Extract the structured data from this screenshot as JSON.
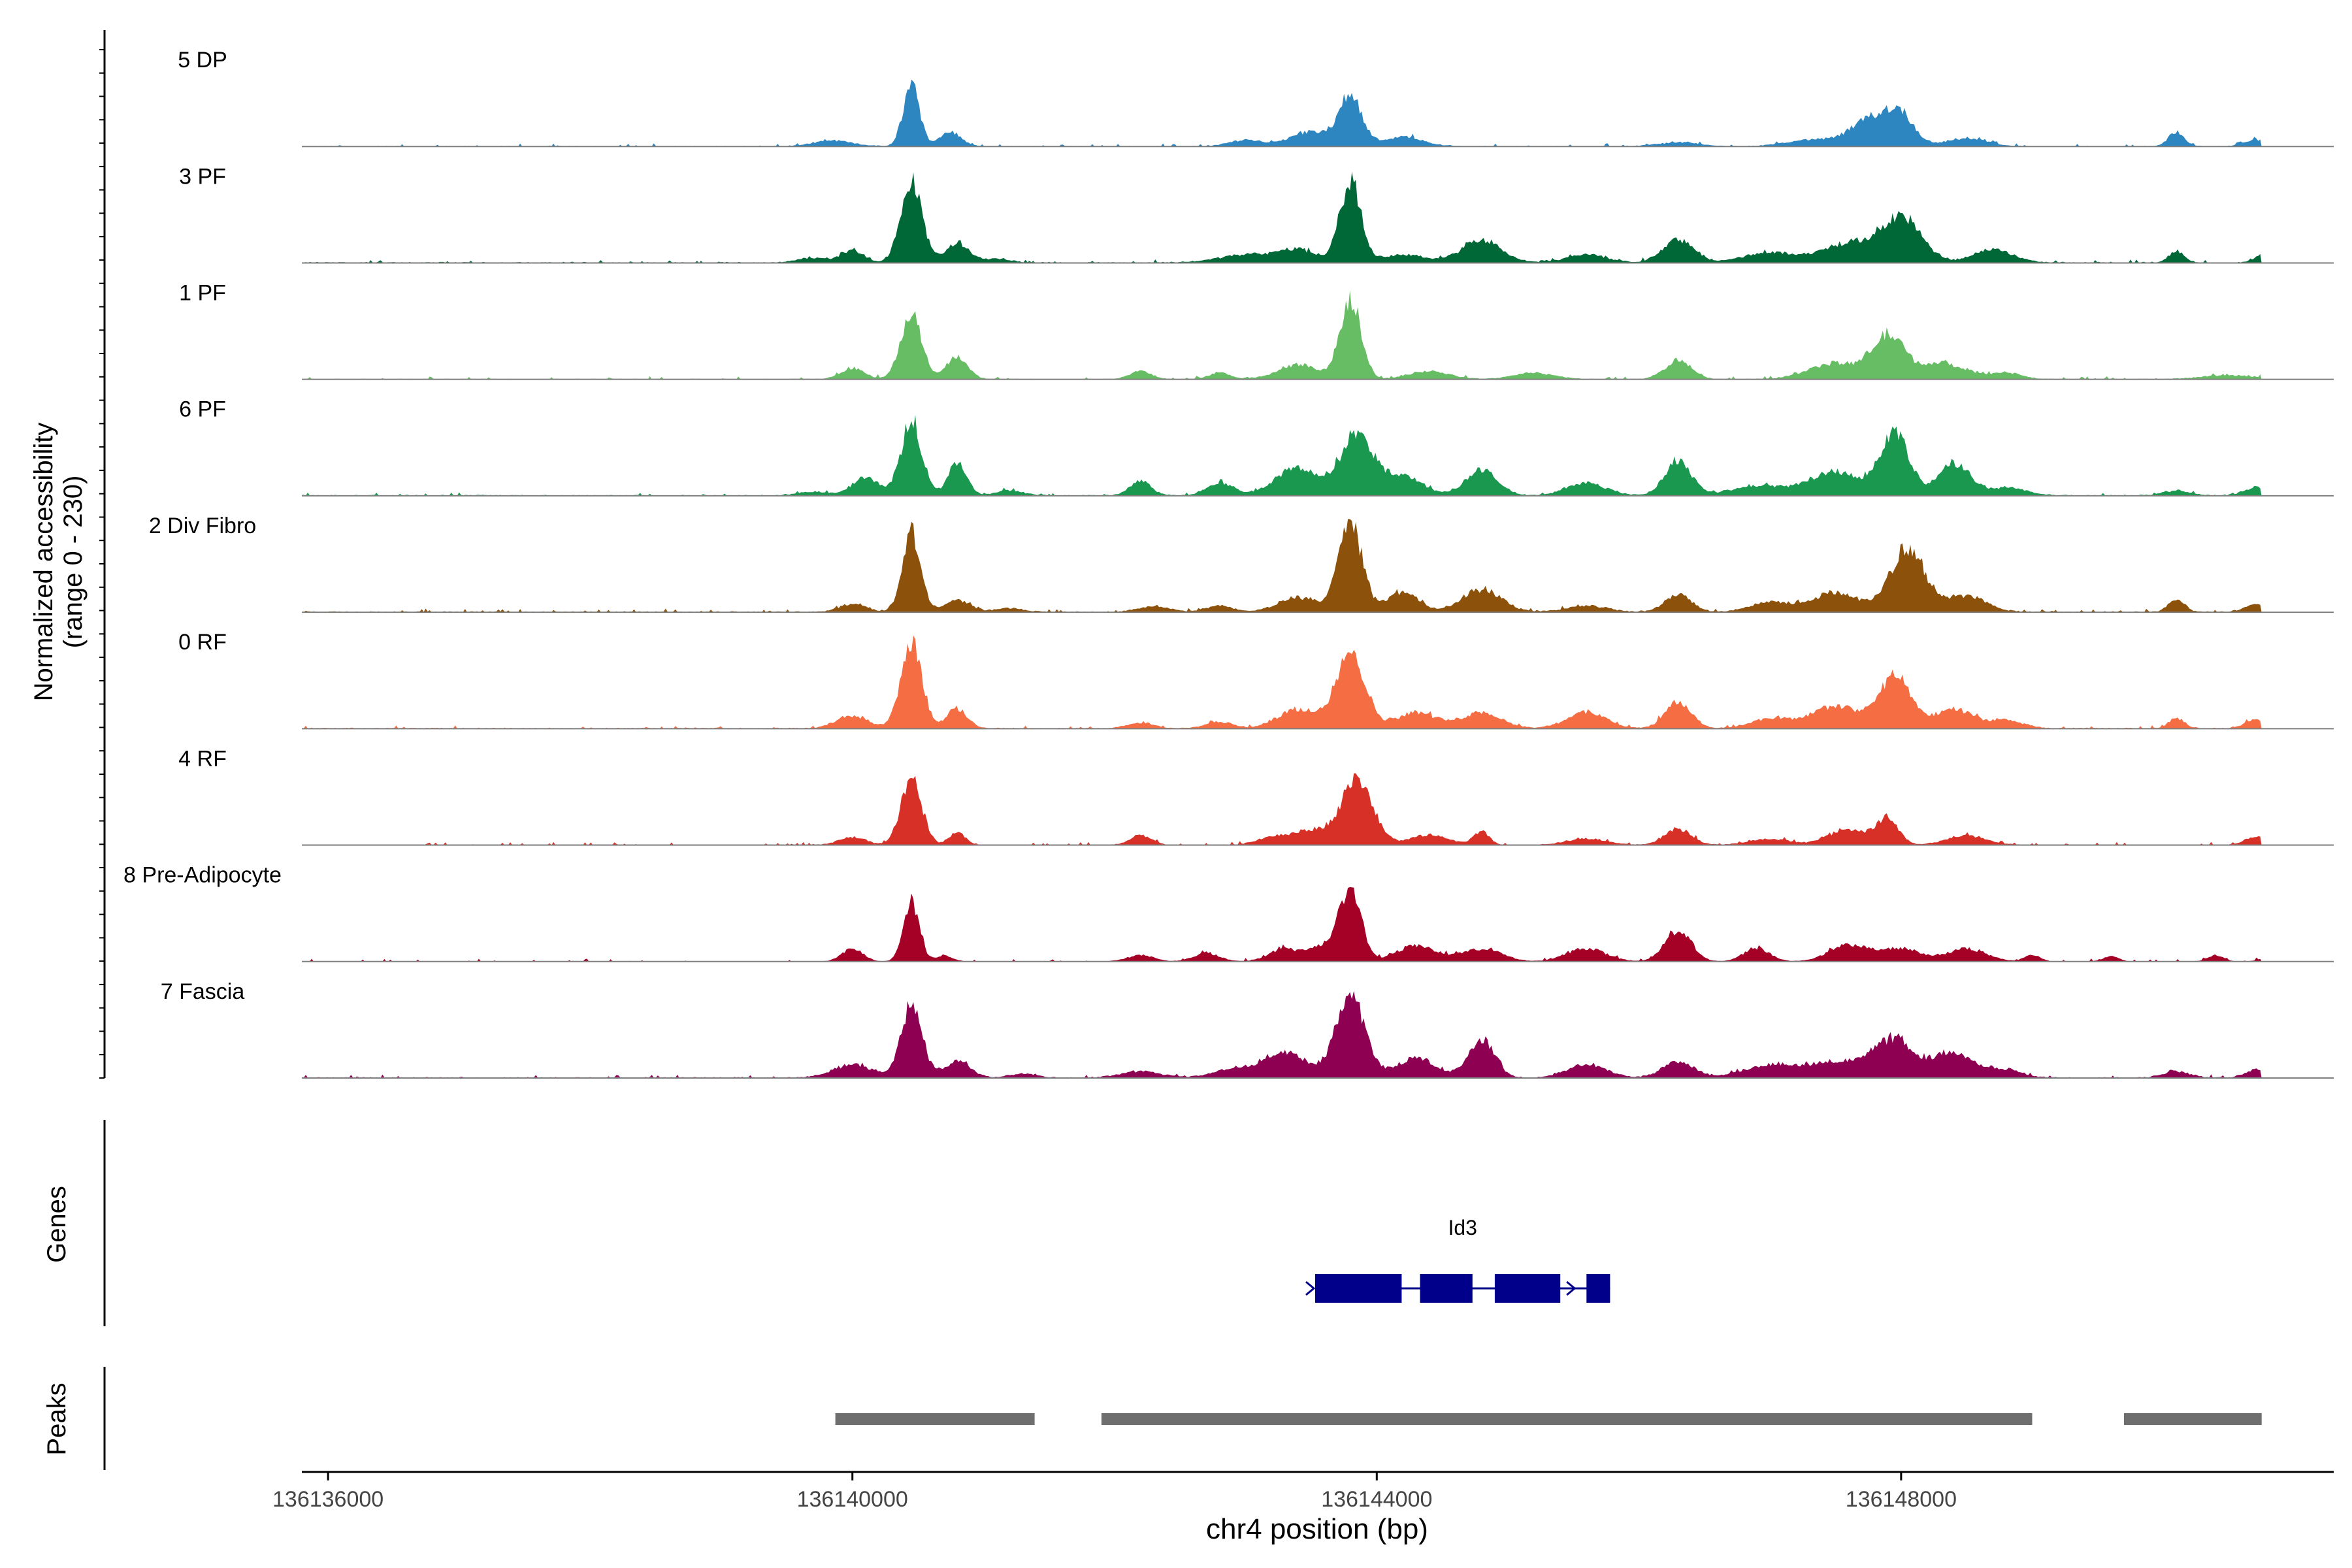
{
  "chart_data": {
    "type": "area",
    "title": "",
    "ylabel_line1": "Normalized accessibility",
    "ylabel_line2": "(range 0 - 230)",
    "ylim": [
      0,
      230
    ],
    "xlabel": "chr4 position (bp)",
    "xlim": [
      136135800,
      136151300
    ],
    "xticks": [
      136136000,
      136140000,
      136144000,
      136148000
    ],
    "xtick_labels": [
      "136136000",
      "136140000",
      "136144000",
      "136148000"
    ],
    "data_range": [
      136135800,
      136150750
    ],
    "noise_level": 3,
    "series": [
      {
        "name": "5 DP",
        "color": "#2E86C1",
        "baseline": 2,
        "peaks": [
          [
            136140450,
            200,
            60
          ],
          [
            136140750,
            45,
            80
          ],
          [
            136139850,
            18,
            150
          ],
          [
            136143000,
            20,
            120
          ],
          [
            136143500,
            45,
            160
          ],
          [
            136143800,
            160,
            85
          ],
          [
            136144200,
            30,
            150
          ],
          [
            136146300,
            12,
            150
          ],
          [
            136147300,
            20,
            180
          ],
          [
            136147800,
            90,
            170
          ],
          [
            136148000,
            70,
            100
          ],
          [
            136148500,
            25,
            150
          ],
          [
            136150100,
            45,
            60
          ],
          [
            136150700,
            20,
            80
          ]
        ]
      },
      {
        "name": "3 PF",
        "color": "#006837",
        "baseline": 3,
        "peaks": [
          [
            136140450,
            250,
            80
          ],
          [
            136140800,
            60,
            90
          ],
          [
            136140000,
            40,
            80
          ],
          [
            136139700,
            15,
            120
          ],
          [
            136141100,
            12,
            100
          ],
          [
            136143000,
            25,
            200
          ],
          [
            136143400,
            40,
            150
          ],
          [
            136143800,
            250,
            80
          ],
          [
            136144200,
            25,
            160
          ],
          [
            136144800,
            70,
            150
          ],
          [
            136145600,
            25,
            150
          ],
          [
            136146300,
            70,
            120
          ],
          [
            136147000,
            30,
            200
          ],
          [
            136147600,
            60,
            200
          ],
          [
            136148000,
            140,
            150
          ],
          [
            136148700,
            40,
            150
          ],
          [
            136150100,
            35,
            60
          ],
          [
            136150800,
            30,
            80
          ]
        ]
      },
      {
        "name": "1 PF",
        "color": "#66BD63",
        "baseline": 2,
        "peaks": [
          [
            136140450,
            200,
            80
          ],
          [
            136140800,
            70,
            80
          ],
          [
            136140000,
            35,
            90
          ],
          [
            136142200,
            25,
            80
          ],
          [
            136142800,
            20,
            80
          ],
          [
            136143400,
            45,
            150
          ],
          [
            136143800,
            250,
            80
          ],
          [
            136144400,
            25,
            150
          ],
          [
            136145200,
            20,
            150
          ],
          [
            136146300,
            60,
            100
          ],
          [
            136147500,
            50,
            200
          ],
          [
            136147900,
            130,
            120
          ],
          [
            136148300,
            50,
            180
          ],
          [
            136148800,
            20,
            120
          ],
          [
            136150500,
            12,
            200
          ]
        ]
      },
      {
        "name": "6 PF",
        "color": "#1A9850",
        "baseline": 3,
        "peaks": [
          [
            136140450,
            230,
            80
          ],
          [
            136140800,
            100,
            70
          ],
          [
            136140100,
            55,
            100
          ],
          [
            136139700,
            12,
            120
          ],
          [
            136141200,
            15,
            100
          ],
          [
            136142200,
            45,
            80
          ],
          [
            136142800,
            40,
            100
          ],
          [
            136143400,
            85,
            170
          ],
          [
            136143850,
            190,
            120
          ],
          [
            136144200,
            60,
            150
          ],
          [
            136144800,
            80,
            120
          ],
          [
            136145600,
            40,
            150
          ],
          [
            136146300,
            110,
            100
          ],
          [
            136146900,
            30,
            200
          ],
          [
            136147500,
            75,
            200
          ],
          [
            136147950,
            190,
            110
          ],
          [
            136148400,
            100,
            120
          ],
          [
            136148800,
            25,
            150
          ],
          [
            136150100,
            15,
            100
          ],
          [
            136150700,
            25,
            80
          ]
        ]
      },
      {
        "name": "2 Div Fibro",
        "color": "#8C510A",
        "baseline": 3,
        "peaks": [
          [
            136140450,
            250,
            70
          ],
          [
            136140800,
            35,
            100
          ],
          [
            136140000,
            25,
            100
          ],
          [
            136141200,
            12,
            100
          ],
          [
            136142300,
            18,
            120
          ],
          [
            136142800,
            20,
            100
          ],
          [
            136143400,
            45,
            150
          ],
          [
            136143800,
            270,
            90
          ],
          [
            136144200,
            60,
            120
          ],
          [
            136144800,
            70,
            150
          ],
          [
            136145600,
            20,
            150
          ],
          [
            136146300,
            55,
            100
          ],
          [
            136147000,
            30,
            150
          ],
          [
            136147500,
            60,
            180
          ],
          [
            136148050,
            200,
            130
          ],
          [
            136148500,
            50,
            150
          ],
          [
            136150100,
            40,
            60
          ],
          [
            136150700,
            25,
            80
          ]
        ]
      },
      {
        "name": "0 RF",
        "color": "#F46D43",
        "baseline": 3,
        "peaks": [
          [
            136140450,
            270,
            80
          ],
          [
            136140800,
            60,
            80
          ],
          [
            136140000,
            40,
            120
          ],
          [
            136142200,
            18,
            100
          ],
          [
            136142800,
            20,
            100
          ],
          [
            136143400,
            60,
            150
          ],
          [
            136143800,
            240,
            110
          ],
          [
            136144300,
            50,
            150
          ],
          [
            136144800,
            50,
            150
          ],
          [
            136145600,
            50,
            150
          ],
          [
            136146300,
            80,
            100
          ],
          [
            136147000,
            30,
            150
          ],
          [
            136147500,
            70,
            180
          ],
          [
            136147950,
            160,
            120
          ],
          [
            136148400,
            60,
            150
          ],
          [
            136148800,
            25,
            120
          ],
          [
            136150100,
            30,
            60
          ],
          [
            136150700,
            25,
            80
          ]
        ]
      },
      {
        "name": "4 RF",
        "color": "#D73027",
        "baseline": 2,
        "peaks": [
          [
            136140450,
            200,
            80
          ],
          [
            136140800,
            40,
            60
          ],
          [
            136140000,
            25,
            100
          ],
          [
            136142200,
            30,
            80
          ],
          [
            136143200,
            20,
            120
          ],
          [
            136143500,
            45,
            150
          ],
          [
            136143850,
            200,
            120
          ],
          [
            136144400,
            30,
            150
          ],
          [
            136144800,
            40,
            60
          ],
          [
            136145600,
            20,
            150
          ],
          [
            136146300,
            50,
            100
          ],
          [
            136147000,
            18,
            150
          ],
          [
            136147600,
            50,
            150
          ],
          [
            136147900,
            80,
            80
          ],
          [
            136148500,
            30,
            150
          ],
          [
            136150700,
            25,
            80
          ]
        ]
      },
      {
        "name": "8 Pre-Adipocyte",
        "color": "#A50026",
        "baseline": 1,
        "peaks": [
          [
            136140450,
            190,
            60
          ],
          [
            136140000,
            40,
            80
          ],
          [
            136140700,
            20,
            60
          ],
          [
            136142200,
            20,
            100
          ],
          [
            136142700,
            25,
            100
          ],
          [
            136143300,
            40,
            120
          ],
          [
            136143600,
            50,
            100
          ],
          [
            136143800,
            230,
            80
          ],
          [
            136144300,
            50,
            150
          ],
          [
            136144800,
            40,
            150
          ],
          [
            136145600,
            40,
            150
          ],
          [
            136146300,
            100,
            100
          ],
          [
            136146900,
            40,
            100
          ],
          [
            136147600,
            50,
            150
          ],
          [
            136148000,
            40,
            150
          ],
          [
            136148500,
            40,
            150
          ],
          [
            136149000,
            20,
            60
          ],
          [
            136149600,
            15,
            60
          ],
          [
            136150400,
            20,
            60
          ],
          [
            136150800,
            15,
            60
          ]
        ]
      },
      {
        "name": "7 Fascia",
        "color": "#8E0152",
        "baseline": 3,
        "peaks": [
          [
            136140450,
            230,
            80
          ],
          [
            136140000,
            40,
            150
          ],
          [
            136140800,
            50,
            100
          ],
          [
            136141300,
            12,
            100
          ],
          [
            136142200,
            20,
            150
          ],
          [
            136142900,
            25,
            150
          ],
          [
            136143300,
            80,
            170
          ],
          [
            136143800,
            260,
            110
          ],
          [
            136144300,
            60,
            150
          ],
          [
            136144800,
            120,
            100
          ],
          [
            136145600,
            40,
            150
          ],
          [
            136146300,
            50,
            120
          ],
          [
            136147000,
            40,
            200
          ],
          [
            136147500,
            50,
            200
          ],
          [
            136147950,
            120,
            150
          ],
          [
            136148400,
            80,
            150
          ],
          [
            136148800,
            25,
            120
          ],
          [
            136150100,
            20,
            100
          ],
          [
            136150700,
            25,
            80
          ]
        ]
      }
    ],
    "genes": [
      {
        "name": "Id3",
        "strand": "+",
        "start": 136143530,
        "end": 136145780,
        "exons": [
          [
            136143530,
            136144190
          ],
          [
            136144330,
            136144730
          ],
          [
            136144900,
            136145400
          ],
          [
            136145600,
            136145780
          ]
        ],
        "color": "#00008B"
      }
    ],
    "peaks_track_label": "Peaks",
    "genes_track_label": "Genes",
    "peak_regions": [
      [
        136139870,
        136141390
      ],
      [
        136141900,
        136149000
      ],
      [
        136149700,
        136150750
      ]
    ],
    "peak_color": "#6E6E6E"
  }
}
